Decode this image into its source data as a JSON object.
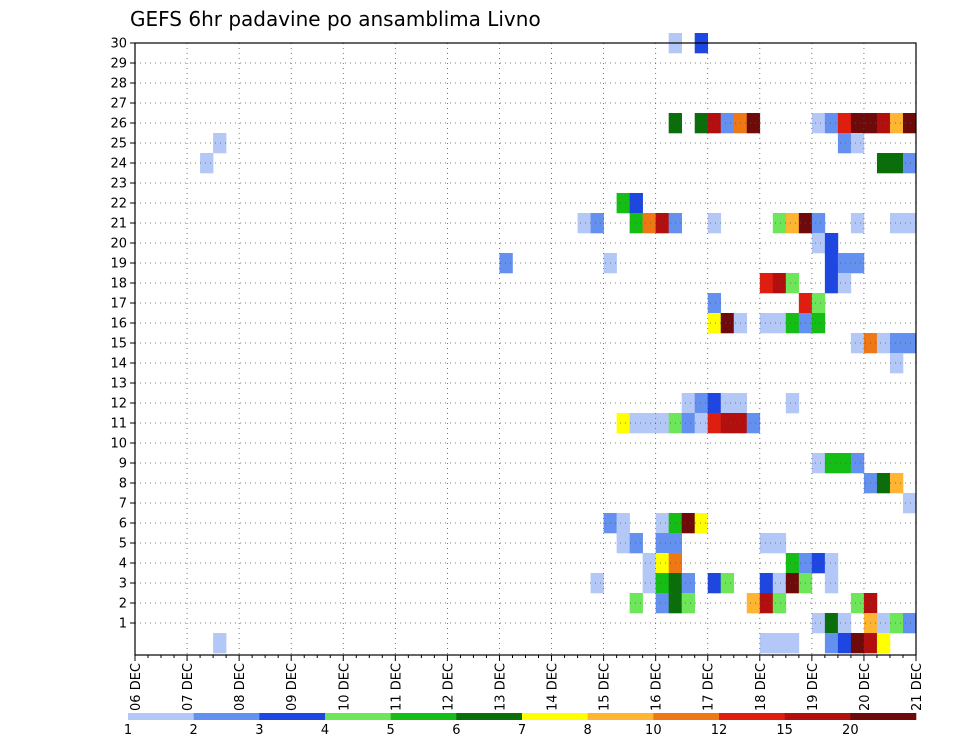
{
  "chart_data": {
    "type": "heatmap",
    "title": "GEFS 6hr padavine po ansamblima Livno",
    "xlabel": "",
    "ylabel": "",
    "x_labels": [
      "06 DEC",
      "07 DEC",
      "08 DEC",
      "09 DEC",
      "10 DEC",
      "11 DEC",
      "12 DEC",
      "13 DEC",
      "14 DEC",
      "15 DEC",
      "16 DEC",
      "17 DEC",
      "18 DEC",
      "19 DEC",
      "20 DEC",
      "21 DEC"
    ],
    "y_labels": [
      "1",
      "2",
      "3",
      "4",
      "5",
      "6",
      "7",
      "8",
      "9",
      "10",
      "11",
      "12",
      "13",
      "14",
      "15",
      "16",
      "17",
      "18",
      "19",
      "20",
      "21",
      "22",
      "23",
      "24",
      "25",
      "26",
      "27",
      "28",
      "29",
      "30"
    ],
    "x_unit": "6-hour step from 06 DEC 00z",
    "grid": true,
    "colorbar": {
      "labels": [
        "1",
        "2",
        "3",
        "4",
        "5",
        "6",
        "7",
        "8",
        "10",
        "12",
        "15",
        "20"
      ],
      "colors": [
        "#b4c8f8",
        "#6490f0",
        "#1e46e0",
        "#6ee65a",
        "#14be14",
        "#0a6e0a",
        "#ffff00",
        "#ffb432",
        "#f07814",
        "#e01e10",
        "#b40f0f",
        "#6e0a0a"
      ]
    },
    "cells": [
      {
        "m": 30,
        "t": 41,
        "v": 1
      },
      {
        "m": 30,
        "t": 43,
        "v": 3
      },
      {
        "m": 26,
        "t": 41,
        "v": 6
      },
      {
        "m": 26,
        "t": 43,
        "v": 6
      },
      {
        "m": 26,
        "t": 44,
        "v": 11
      },
      {
        "m": 26,
        "t": 45,
        "v": 2
      },
      {
        "m": 26,
        "t": 46,
        "v": 9
      },
      {
        "m": 26,
        "t": 47,
        "v": 12
      },
      {
        "m": 26,
        "t": 52,
        "v": 1
      },
      {
        "m": 26,
        "t": 53,
        "v": 2
      },
      {
        "m": 26,
        "t": 54,
        "v": 10
      },
      {
        "m": 26,
        "t": 55,
        "v": 12
      },
      {
        "m": 26,
        "t": 56,
        "v": 12
      },
      {
        "m": 26,
        "t": 57,
        "v": 11
      },
      {
        "m": 26,
        "t": 58,
        "v": 8
      },
      {
        "m": 26,
        "t": 59,
        "v": 12
      },
      {
        "m": 25,
        "t": 6,
        "v": 1
      },
      {
        "m": 25,
        "t": 54,
        "v": 2
      },
      {
        "m": 25,
        "t": 55,
        "v": 1
      },
      {
        "m": 24,
        "t": 5,
        "v": 1
      },
      {
        "m": 24,
        "t": 57,
        "v": 6
      },
      {
        "m": 24,
        "t": 58,
        "v": 6
      },
      {
        "m": 24,
        "t": 59,
        "v": 2
      },
      {
        "m": 22,
        "t": 37,
        "v": 5
      },
      {
        "m": 22,
        "t": 38,
        "v": 3
      },
      {
        "m": 21,
        "t": 34,
        "v": 1
      },
      {
        "m": 21,
        "t": 35,
        "v": 2
      },
      {
        "m": 21,
        "t": 38,
        "v": 5
      },
      {
        "m": 21,
        "t": 39,
        "v": 9
      },
      {
        "m": 21,
        "t": 40,
        "v": 11
      },
      {
        "m": 21,
        "t": 41,
        "v": 2
      },
      {
        "m": 21,
        "t": 44,
        "v": 1
      },
      {
        "m": 21,
        "t": 49,
        "v": 4
      },
      {
        "m": 21,
        "t": 50,
        "v": 8
      },
      {
        "m": 21,
        "t": 51,
        "v": 12
      },
      {
        "m": 21,
        "t": 52,
        "v": 2
      },
      {
        "m": 21,
        "t": 55,
        "v": 1
      },
      {
        "m": 21,
        "t": 58,
        "v": 1
      },
      {
        "m": 21,
        "t": 59,
        "v": 1
      },
      {
        "m": 20,
        "t": 52,
        "v": 1
      },
      {
        "m": 20,
        "t": 53,
        "v": 3
      },
      {
        "m": 19,
        "t": 28,
        "v": 2
      },
      {
        "m": 19,
        "t": 36,
        "v": 1
      },
      {
        "m": 19,
        "t": 53,
        "v": 3
      },
      {
        "m": 19,
        "t": 54,
        "v": 2
      },
      {
        "m": 19,
        "t": 55,
        "v": 2
      },
      {
        "m": 18,
        "t": 48,
        "v": 10
      },
      {
        "m": 18,
        "t": 49,
        "v": 11
      },
      {
        "m": 18,
        "t": 50,
        "v": 4
      },
      {
        "m": 18,
        "t": 53,
        "v": 3
      },
      {
        "m": 18,
        "t": 54,
        "v": 1
      },
      {
        "m": 17,
        "t": 44,
        "v": 2
      },
      {
        "m": 17,
        "t": 51,
        "v": 10
      },
      {
        "m": 17,
        "t": 52,
        "v": 4
      },
      {
        "m": 16,
        "t": 44,
        "v": 7
      },
      {
        "m": 16,
        "t": 45,
        "v": 12
      },
      {
        "m": 16,
        "t": 46,
        "v": 1
      },
      {
        "m": 16,
        "t": 48,
        "v": 1
      },
      {
        "m": 16,
        "t": 49,
        "v": 1
      },
      {
        "m": 16,
        "t": 50,
        "v": 5
      },
      {
        "m": 16,
        "t": 51,
        "v": 2
      },
      {
        "m": 16,
        "t": 52,
        "v": 5
      },
      {
        "m": 15,
        "t": 55,
        "v": 1
      },
      {
        "m": 15,
        "t": 56,
        "v": 9
      },
      {
        "m": 15,
        "t": 57,
        "v": 1
      },
      {
        "m": 15,
        "t": 58,
        "v": 2
      },
      {
        "m": 15,
        "t": 59,
        "v": 2
      },
      {
        "m": 14,
        "t": 58,
        "v": 1
      },
      {
        "m": 12,
        "t": 42,
        "v": 1
      },
      {
        "m": 12,
        "t": 43,
        "v": 2
      },
      {
        "m": 12,
        "t": 44,
        "v": 3
      },
      {
        "m": 12,
        "t": 45,
        "v": 1
      },
      {
        "m": 12,
        "t": 46,
        "v": 1
      },
      {
        "m": 12,
        "t": 50,
        "v": 1
      },
      {
        "m": 11,
        "t": 37,
        "v": 7
      },
      {
        "m": 11,
        "t": 38,
        "v": 1
      },
      {
        "m": 11,
        "t": 39,
        "v": 1
      },
      {
        "m": 11,
        "t": 40,
        "v": 1
      },
      {
        "m": 11,
        "t": 41,
        "v": 4
      },
      {
        "m": 11,
        "t": 42,
        "v": 2
      },
      {
        "m": 11,
        "t": 43,
        "v": 1
      },
      {
        "m": 11,
        "t": 44,
        "v": 10
      },
      {
        "m": 11,
        "t": 45,
        "v": 11
      },
      {
        "m": 11,
        "t": 46,
        "v": 11
      },
      {
        "m": 11,
        "t": 47,
        "v": 2
      },
      {
        "m": 9,
        "t": 52,
        "v": 1
      },
      {
        "m": 9,
        "t": 53,
        "v": 5
      },
      {
        "m": 9,
        "t": 54,
        "v": 5
      },
      {
        "m": 9,
        "t": 55,
        "v": 2
      },
      {
        "m": 8,
        "t": 56,
        "v": 2
      },
      {
        "m": 8,
        "t": 57,
        "v": 6
      },
      {
        "m": 8,
        "t": 58,
        "v": 8
      },
      {
        "m": 7,
        "t": 59,
        "v": 1
      },
      {
        "m": 6,
        "t": 36,
        "v": 2
      },
      {
        "m": 6,
        "t": 37,
        "v": 1
      },
      {
        "m": 6,
        "t": 40,
        "v": 1
      },
      {
        "m": 6,
        "t": 41,
        "v": 5
      },
      {
        "m": 6,
        "t": 42,
        "v": 12
      },
      {
        "m": 6,
        "t": 43,
        "v": 7
      },
      {
        "m": 5,
        "t": 37,
        "v": 1
      },
      {
        "m": 5,
        "t": 38,
        "v": 2
      },
      {
        "m": 5,
        "t": 40,
        "v": 2
      },
      {
        "m": 5,
        "t": 41,
        "v": 2
      },
      {
        "m": 5,
        "t": 48,
        "v": 1
      },
      {
        "m": 5,
        "t": 49,
        "v": 1
      },
      {
        "m": 4,
        "t": 39,
        "v": 1
      },
      {
        "m": 4,
        "t": 40,
        "v": 7
      },
      {
        "m": 4,
        "t": 41,
        "v": 9
      },
      {
        "m": 4,
        "t": 50,
        "v": 5
      },
      {
        "m": 4,
        "t": 51,
        "v": 2
      },
      {
        "m": 4,
        "t": 52,
        "v": 3
      },
      {
        "m": 4,
        "t": 53,
        "v": 1
      },
      {
        "m": 3,
        "t": 35,
        "v": 1
      },
      {
        "m": 3,
        "t": 39,
        "v": 1
      },
      {
        "m": 3,
        "t": 40,
        "v": 5
      },
      {
        "m": 3,
        "t": 41,
        "v": 6
      },
      {
        "m": 3,
        "t": 42,
        "v": 2
      },
      {
        "m": 3,
        "t": 44,
        "v": 3
      },
      {
        "m": 3,
        "t": 45,
        "v": 4
      },
      {
        "m": 3,
        "t": 48,
        "v": 3
      },
      {
        "m": 3,
        "t": 49,
        "v": 1
      },
      {
        "m": 3,
        "t": 50,
        "v": 12
      },
      {
        "m": 3,
        "t": 51,
        "v": 4
      },
      {
        "m": 3,
        "t": 53,
        "v": 1
      },
      {
        "m": 2,
        "t": 38,
        "v": 4
      },
      {
        "m": 2,
        "t": 40,
        "v": 2
      },
      {
        "m": 2,
        "t": 41,
        "v": 6
      },
      {
        "m": 2,
        "t": 42,
        "v": 4
      },
      {
        "m": 2,
        "t": 47,
        "v": 8
      },
      {
        "m": 2,
        "t": 48,
        "v": 11
      },
      {
        "m": 2,
        "t": 49,
        "v": 4
      },
      {
        "m": 2,
        "t": 55,
        "v": 4
      },
      {
        "m": 2,
        "t": 56,
        "v": 11
      },
      {
        "m": 1,
        "t": 52,
        "v": 1
      },
      {
        "m": 1,
        "t": 53,
        "v": 6
      },
      {
        "m": 1,
        "t": 54,
        "v": 1
      },
      {
        "m": 1,
        "t": 56,
        "v": 8
      },
      {
        "m": 1,
        "t": 57,
        "v": 1
      },
      {
        "m": 1,
        "t": 58,
        "v": 4
      },
      {
        "m": 1,
        "t": 59,
        "v": 2
      },
      {
        "m": 0,
        "t": 6,
        "v": 1
      },
      {
        "m": 0,
        "t": 48,
        "v": 1
      },
      {
        "m": 0,
        "t": 49,
        "v": 1
      },
      {
        "m": 0,
        "t": 50,
        "v": 1
      },
      {
        "m": 0,
        "t": 53,
        "v": 2
      },
      {
        "m": 0,
        "t": 54,
        "v": 3
      },
      {
        "m": 0,
        "t": 55,
        "v": 12
      },
      {
        "m": 0,
        "t": 56,
        "v": 11
      },
      {
        "m": 0,
        "t": 57,
        "v": 7
      }
    ]
  }
}
